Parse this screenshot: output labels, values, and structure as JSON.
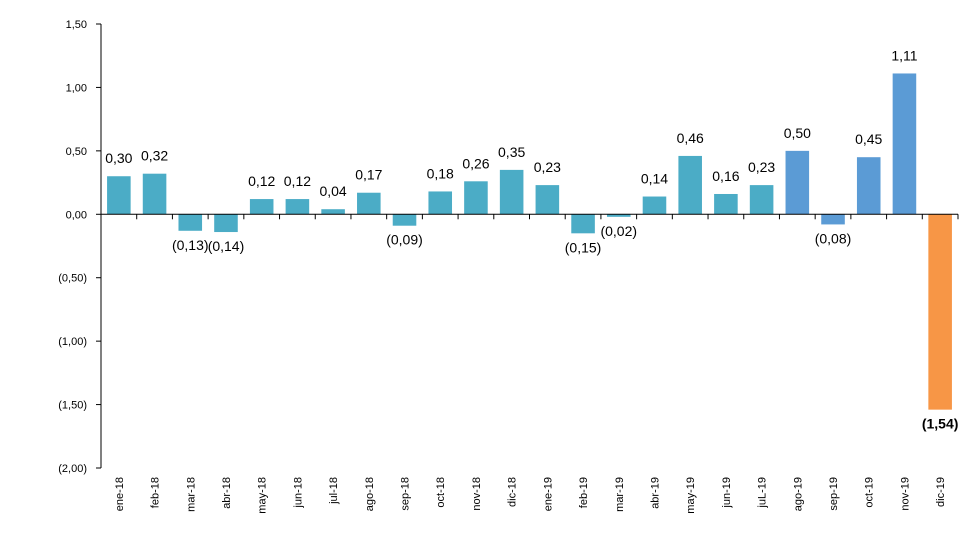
{
  "chart_data": {
    "type": "bar",
    "title": "",
    "xlabel": "",
    "ylabel": "",
    "ylim": [
      -2.0,
      1.5
    ],
    "yticks": [
      1.5,
      1.0,
      0.5,
      0.0,
      -0.5,
      -1.0,
      -1.5,
      -2.0
    ],
    "ytick_labels": [
      "1,50",
      "1,00",
      "0,50",
      "0,00",
      "(0,50)",
      "(1,00)",
      "(1,50)",
      "(2,00)"
    ],
    "grid": false,
    "legend": "none",
    "categories": [
      "ene-18",
      "feb-18",
      "mar-18",
      "abr-18",
      "may-18",
      "jun-18",
      "jul-18",
      "ago-18",
      "sep-18",
      "oct-18",
      "nov-18",
      "dic-18",
      "ene-19",
      "feb-19",
      "mar-19",
      "abr-19",
      "may-19",
      "jun-19",
      "juL-19",
      "ago-19",
      "sep-19",
      "oct-19",
      "nov-19",
      "dic-19"
    ],
    "values": [
      0.3,
      0.32,
      -0.13,
      -0.14,
      0.12,
      0.12,
      0.04,
      0.17,
      -0.09,
      0.18,
      0.26,
      0.35,
      0.23,
      -0.15,
      -0.02,
      0.14,
      0.46,
      0.16,
      0.23,
      0.5,
      -0.08,
      0.45,
      1.11,
      -1.54
    ],
    "data_labels": [
      "0,30",
      "0,32",
      "(0,13)",
      "(0,14)",
      "0,12",
      "0,12",
      "0,04",
      "0,17",
      "(0,09)",
      "0,18",
      "0,26",
      "0,35",
      "0,23",
      "(0,15)",
      "(0,02)",
      "0,14",
      "0,46",
      "0,16",
      "0,23",
      "0,50",
      "(0,08)",
      "0,45",
      "1,11",
      "(1,54)"
    ],
    "bar_colors": [
      "#4BACC6",
      "#4BACC6",
      "#4BACC6",
      "#4BACC6",
      "#4BACC6",
      "#4BACC6",
      "#4BACC6",
      "#4BACC6",
      "#4BACC6",
      "#4BACC6",
      "#4BACC6",
      "#4BACC6",
      "#4BACC6",
      "#4BACC6",
      "#4BACC6",
      "#4BACC6",
      "#4BACC6",
      "#4BACC6",
      "#4BACC6",
      "#5B9BD5",
      "#5B9BD5",
      "#5B9BD5",
      "#5B9BD5",
      "#F79646"
    ],
    "bold_labels": [
      "(1,54)"
    ]
  }
}
